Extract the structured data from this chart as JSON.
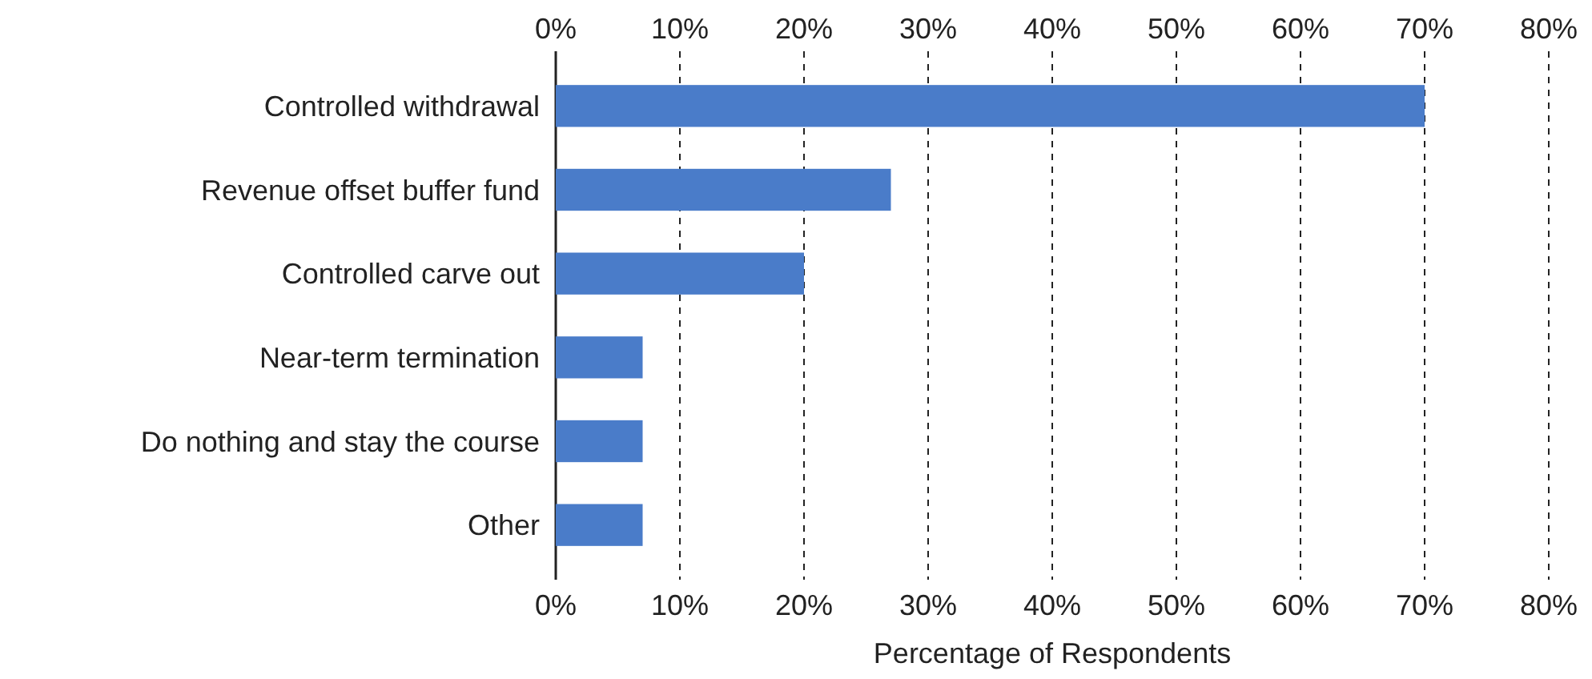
{
  "chart_data": {
    "type": "bar",
    "orientation": "horizontal",
    "categories": [
      "Controlled withdrawal",
      "Revenue offset buffer fund",
      "Controlled carve out",
      "Near-term termination",
      "Do nothing and stay the course",
      "Other"
    ],
    "values": [
      70,
      27,
      20,
      7,
      7,
      7
    ],
    "color": "#4a7cc9",
    "xlabel": "Percentage of Respondents",
    "xlim": [
      0,
      80
    ],
    "xticks": [
      {
        "value": 0,
        "label": "0%"
      },
      {
        "value": 10,
        "label": "10%"
      },
      {
        "value": 20,
        "label": "20%"
      },
      {
        "value": 30,
        "label": "30%"
      },
      {
        "value": 40,
        "label": "40%"
      },
      {
        "value": 50,
        "label": "50%"
      },
      {
        "value": 60,
        "label": "60%"
      },
      {
        "value": 70,
        "label": "70%"
      },
      {
        "value": 80,
        "label": "80%"
      }
    ],
    "x2lim": [
      0,
      80
    ],
    "x2ticks": [
      {
        "value": 0,
        "label": "0%"
      },
      {
        "value": 10,
        "label": "10%"
      },
      {
        "value": 20,
        "label": "20%"
      },
      {
        "value": 30,
        "label": "30%"
      },
      {
        "value": 40,
        "label": "40%"
      },
      {
        "value": 50,
        "label": "50%"
      },
      {
        "value": 60,
        "label": "60%"
      },
      {
        "value": 70,
        "label": "70%"
      },
      {
        "value": 80,
        "label": "80%"
      }
    ],
    "grid": "x"
  }
}
